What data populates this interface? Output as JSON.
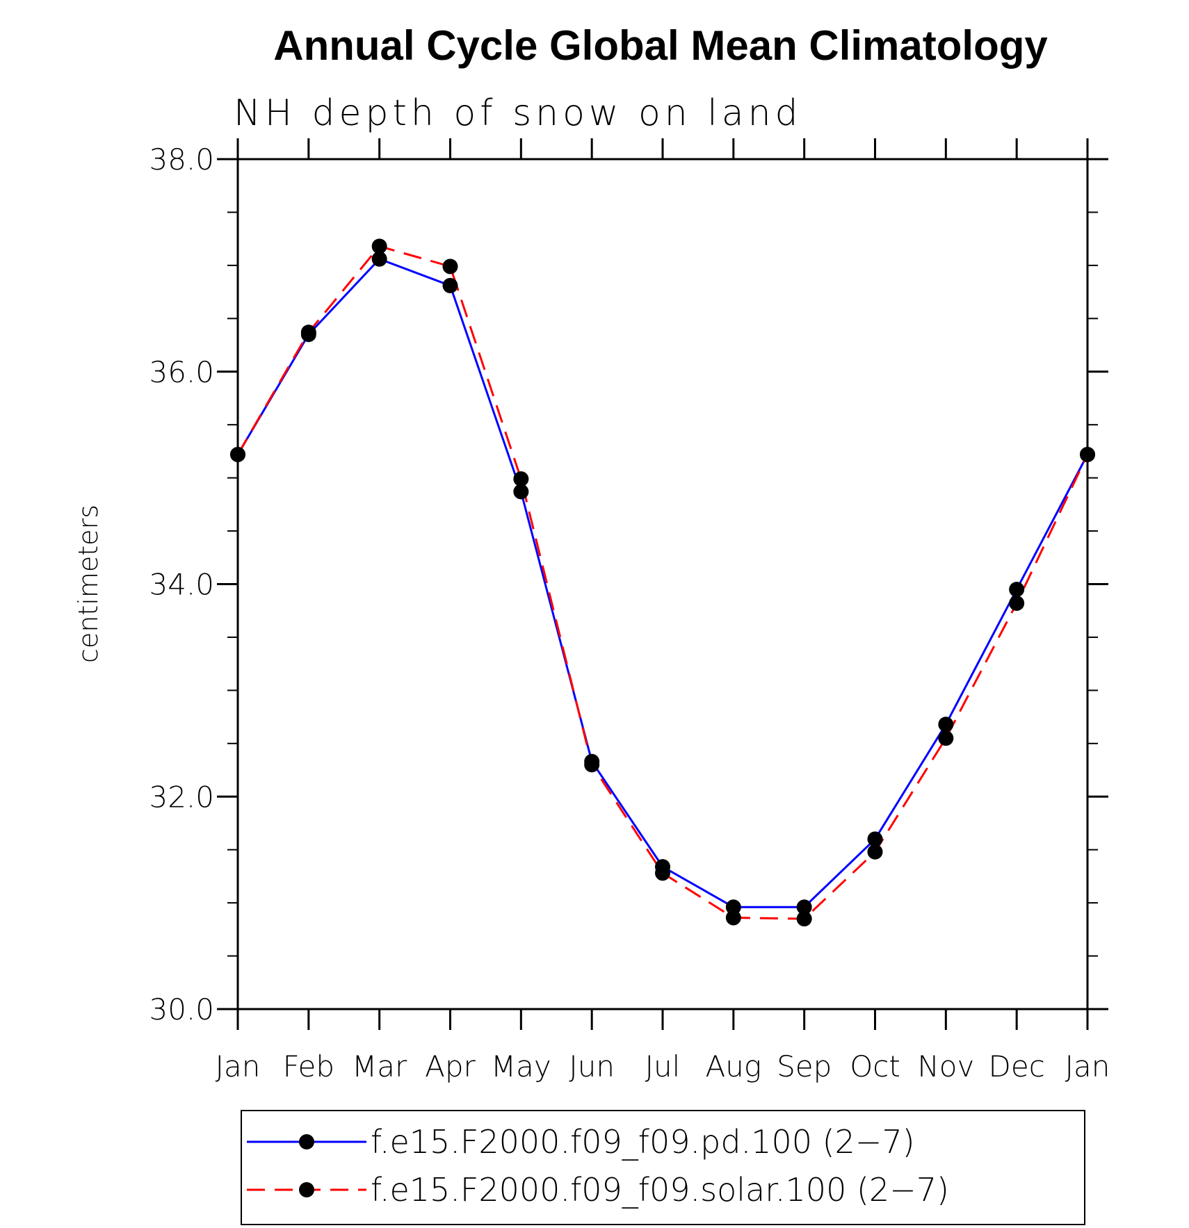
{
  "chart_data": {
    "type": "line",
    "title": "Annual Cycle Global Mean Climatology",
    "subtitle": "NH depth of snow on land",
    "xlabel": "",
    "ylabel": "centimeters",
    "categories": [
      "Jan",
      "Feb",
      "Mar",
      "Apr",
      "May",
      "Jun",
      "Jul",
      "Aug",
      "Sep",
      "Oct",
      "Nov",
      "Dec",
      "Jan"
    ],
    "ylim": [
      30.0,
      38.0
    ],
    "yticks": [
      "30.0",
      "32.0",
      "34.0",
      "36.0",
      "38.0"
    ],
    "grid": false,
    "legend_position": "bottom",
    "series": [
      {
        "name": "f.e15.F2000.f09_f09.pd.100 (2−7)",
        "color": "#0000ff",
        "dash": "solid",
        "marker": "filled-circle",
        "values": [
          35.22,
          36.35,
          37.06,
          36.81,
          34.87,
          32.33,
          31.34,
          30.96,
          30.96,
          31.6,
          32.68,
          33.95,
          35.22
        ]
      },
      {
        "name": "f.e15.F2000.f09_f09.solar.100 (2−7)",
        "color": "#ff0000",
        "dash": "dashed",
        "marker": "filled-circle",
        "values": [
          35.22,
          36.37,
          37.18,
          36.99,
          34.99,
          32.3,
          31.28,
          30.86,
          30.85,
          31.48,
          32.55,
          33.82,
          35.22
        ]
      }
    ]
  }
}
